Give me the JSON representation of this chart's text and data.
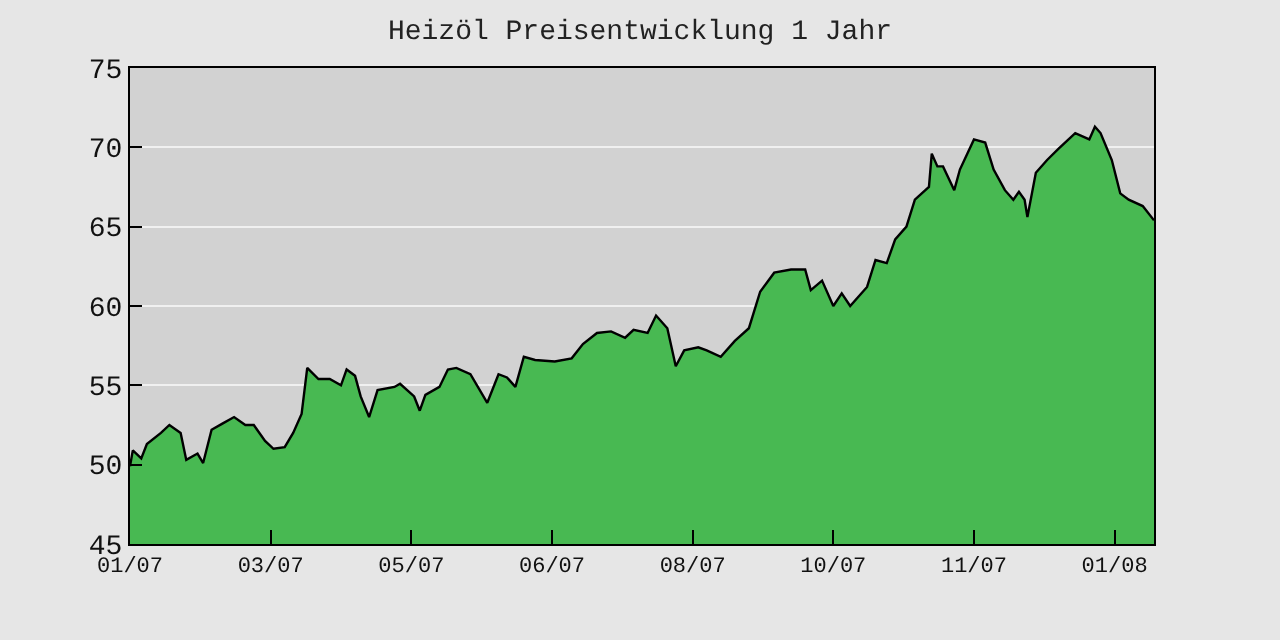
{
  "chart_data": {
    "type": "area",
    "title": "Heizöl Preisentwicklung 1 Jahr",
    "x": [
      "2007-01-27",
      "2007-01-28",
      "2007-01-31",
      "2007-02-02",
      "2007-02-07",
      "2007-02-10",
      "2007-02-14",
      "2007-02-16",
      "2007-02-20",
      "2007-02-22",
      "2007-02-25",
      "2007-03-01",
      "2007-03-05",
      "2007-03-09",
      "2007-03-12",
      "2007-03-16",
      "2007-03-19",
      "2007-03-23",
      "2007-03-26",
      "2007-03-29",
      "2007-03-31",
      "2007-04-04",
      "2007-04-08",
      "2007-04-12",
      "2007-04-14",
      "2007-04-17",
      "2007-04-19",
      "2007-04-22",
      "2007-04-25",
      "2007-05-01",
      "2007-05-03",
      "2007-05-08",
      "2007-05-10",
      "2007-05-12",
      "2007-05-17",
      "2007-05-20",
      "2007-05-23",
      "2007-05-28",
      "2007-06-03",
      "2007-06-07",
      "2007-06-10",
      "2007-06-13",
      "2007-06-16",
      "2007-06-20",
      "2007-06-27",
      "2007-07-03",
      "2007-07-07",
      "2007-07-12",
      "2007-07-17",
      "2007-07-22",
      "2007-07-25",
      "2007-07-30",
      "2007-08-02",
      "2007-08-06",
      "2007-08-09",
      "2007-08-12",
      "2007-08-17",
      "2007-08-20",
      "2007-08-25",
      "2007-08-30",
      "2007-09-04",
      "2007-09-08",
      "2007-09-13",
      "2007-09-19",
      "2007-09-24",
      "2007-09-26",
      "2007-09-30",
      "2007-10-04",
      "2007-10-07",
      "2007-10-10",
      "2007-10-16",
      "2007-10-19",
      "2007-10-23",
      "2007-10-26",
      "2007-10-30",
      "2007-11-02",
      "2007-11-07",
      "2007-11-08",
      "2007-11-10",
      "2007-11-12",
      "2007-11-16",
      "2007-11-18",
      "2007-11-23",
      "2007-11-27",
      "2007-11-30",
      "2007-12-04",
      "2007-12-07",
      "2007-12-09",
      "2007-12-11",
      "2007-12-12",
      "2007-12-15",
      "2007-12-19",
      "2007-12-23",
      "2007-12-29",
      "2008-01-03",
      "2008-01-05",
      "2008-01-07",
      "2008-01-11",
      "2008-01-14",
      "2008-01-17",
      "2008-01-22",
      "2008-01-26"
    ],
    "series": [
      {
        "color": "#48b952",
        "values": [
          49.9,
          50.9,
          50.4,
          51.3,
          52.0,
          52.5,
          52.0,
          50.3,
          50.7,
          50.1,
          52.2,
          52.6,
          53.0,
          52.5,
          52.5,
          51.5,
          51.0,
          51.1,
          52.0,
          53.2,
          56.1,
          55.4,
          55.4,
          55.0,
          56.0,
          55.6,
          54.3,
          53.0,
          54.7,
          54.9,
          55.1,
          54.3,
          53.4,
          54.4,
          54.9,
          56.0,
          56.1,
          55.7,
          53.9,
          55.7,
          55.5,
          54.9,
          56.8,
          56.6,
          56.5,
          56.7,
          57.6,
          58.3,
          58.4,
          58.0,
          58.5,
          58.3,
          59.4,
          58.6,
          56.2,
          57.2,
          57.4,
          57.2,
          56.8,
          57.8,
          58.6,
          60.9,
          62.1,
          62.3,
          62.3,
          61.0,
          61.6,
          60.0,
          60.8,
          60.0,
          61.2,
          62.9,
          62.7,
          64.2,
          65.0,
          66.7,
          67.5,
          69.6,
          68.8,
          68.8,
          67.3,
          68.6,
          70.5,
          70.3,
          68.6,
          67.3,
          66.7,
          67.2,
          66.7,
          65.6,
          68.4,
          69.2,
          69.9,
          70.9,
          70.5,
          71.3,
          70.9,
          69.2,
          67.1,
          66.7,
          66.3,
          65.4
        ]
      }
    ],
    "xlim": [
      "2007-01-27",
      "2008-01-26"
    ],
    "xticks": [
      {
        "value": "2007-01-27",
        "label": "01/07"
      },
      {
        "value": "2007-03-18",
        "label": "03/07"
      },
      {
        "value": "2007-05-07",
        "label": "05/07"
      },
      {
        "value": "2007-06-26",
        "label": "06/07"
      },
      {
        "value": "2007-08-15",
        "label": "08/07"
      },
      {
        "value": "2007-10-04",
        "label": "10/07"
      },
      {
        "value": "2007-11-23",
        "label": "11/07"
      },
      {
        "value": "2008-01-12",
        "label": "01/08"
      }
    ],
    "ylim": [
      45,
      75
    ],
    "yticks": [
      45,
      50,
      55,
      60,
      65,
      70,
      75
    ],
    "grid": "y"
  }
}
